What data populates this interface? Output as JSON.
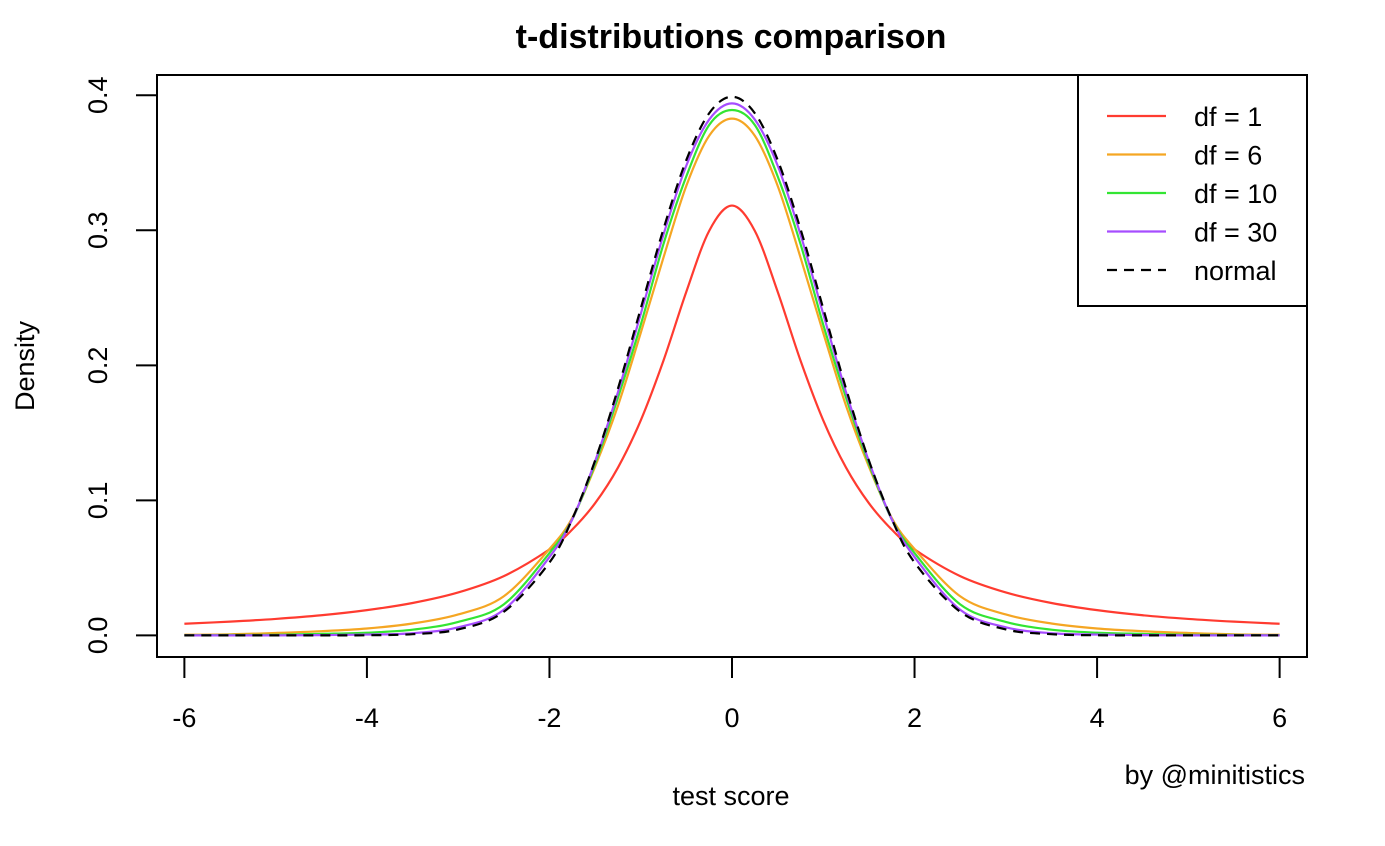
{
  "chart_data": {
    "type": "line",
    "title": "t-distributions comparison",
    "xlabel": "test score",
    "ylabel": "Density",
    "xlim": [
      -6.3,
      6.3
    ],
    "ylim": [
      -0.016,
      0.415
    ],
    "x_ticks": [
      -6,
      -4,
      -2,
      0,
      2,
      4,
      6
    ],
    "x_tick_labels": [
      "-6",
      "-4",
      "-2",
      "0",
      "2",
      "4",
      "6"
    ],
    "y_ticks": [
      0.0,
      0.1,
      0.2,
      0.3,
      0.4
    ],
    "y_tick_labels": [
      "0.0",
      "0.1",
      "0.2",
      "0.3",
      "0.4"
    ],
    "x": [
      -6.0,
      -5.5,
      -5.0,
      -4.5,
      -4.0,
      -3.5,
      -3.0,
      -2.5,
      -2.0,
      -1.75,
      -1.5,
      -1.25,
      -1.0,
      -0.75,
      -0.5,
      -0.25,
      0.0,
      0.25,
      0.5,
      0.75,
      1.0,
      1.25,
      1.5,
      1.75,
      2.0,
      2.5,
      3.0,
      3.5,
      4.0,
      4.5,
      5.0,
      5.5,
      6.0
    ],
    "series": [
      {
        "name": "df = 1",
        "color": "#ff3b30",
        "dash": "solid",
        "values": [
          0.0086,
          0.0102,
          0.0122,
          0.0149,
          0.0187,
          0.024,
          0.0318,
          0.0439,
          0.0637,
          0.0784,
          0.0979,
          0.1242,
          0.1592,
          0.2037,
          0.2546,
          0.2996,
          0.3183,
          0.2996,
          0.2546,
          0.2037,
          0.1592,
          0.1242,
          0.0979,
          0.0784,
          0.0637,
          0.0439,
          0.0318,
          0.024,
          0.0187,
          0.0149,
          0.0122,
          0.0102,
          0.0086
        ]
      },
      {
        "name": "df = 6",
        "color": "#f5a623",
        "dash": "solid",
        "values": [
          0.0005,
          0.0008,
          0.0018,
          0.0031,
          0.0051,
          0.0088,
          0.0155,
          0.029,
          0.064,
          0.087,
          0.125,
          0.17,
          0.224,
          0.28,
          0.333,
          0.37,
          0.3827,
          0.37,
          0.333,
          0.28,
          0.224,
          0.17,
          0.125,
          0.087,
          0.064,
          0.029,
          0.0155,
          0.0088,
          0.0051,
          0.0031,
          0.0018,
          0.0008,
          0.0005
        ]
      },
      {
        "name": "df = 10",
        "color": "#33e533",
        "dash": "solid",
        "values": [
          0.0001,
          0.0003,
          0.0004,
          0.0011,
          0.002,
          0.0042,
          0.01,
          0.023,
          0.061,
          0.086,
          0.127,
          0.176,
          0.23,
          0.29,
          0.34,
          0.378,
          0.3891,
          0.378,
          0.34,
          0.29,
          0.23,
          0.176,
          0.127,
          0.086,
          0.061,
          0.023,
          0.01,
          0.0042,
          0.002,
          0.0011,
          0.0004,
          0.0003,
          0.0001
        ]
      },
      {
        "name": "df = 30",
        "color": "#a64dff",
        "dash": "solid",
        "values": [
          0.0,
          0.0,
          0.0,
          0.0002,
          0.0006,
          0.0016,
          0.006,
          0.019,
          0.058,
          0.086,
          0.129,
          0.18,
          0.238,
          0.297,
          0.348,
          0.382,
          0.394,
          0.382,
          0.348,
          0.297,
          0.238,
          0.18,
          0.129,
          0.086,
          0.058,
          0.019,
          0.006,
          0.0016,
          0.0006,
          0.0002,
          0.0,
          0.0,
          0.0
        ]
      },
      {
        "name": "normal",
        "color": "#000000",
        "dash": "dashed",
        "values": [
          0.0,
          0.0,
          0.0,
          0.0,
          0.0001,
          0.0009,
          0.0044,
          0.0175,
          0.054,
          0.0863,
          0.1295,
          0.1826,
          0.242,
          0.3011,
          0.3521,
          0.3867,
          0.3989,
          0.3867,
          0.3521,
          0.3011,
          0.242,
          0.1826,
          0.1295,
          0.0863,
          0.054,
          0.0175,
          0.0044,
          0.0009,
          0.0001,
          0.0,
          0.0,
          0.0,
          0.0
        ]
      }
    ],
    "legend_position": "top-right",
    "grid": false
  },
  "credit": "by @minitistics"
}
